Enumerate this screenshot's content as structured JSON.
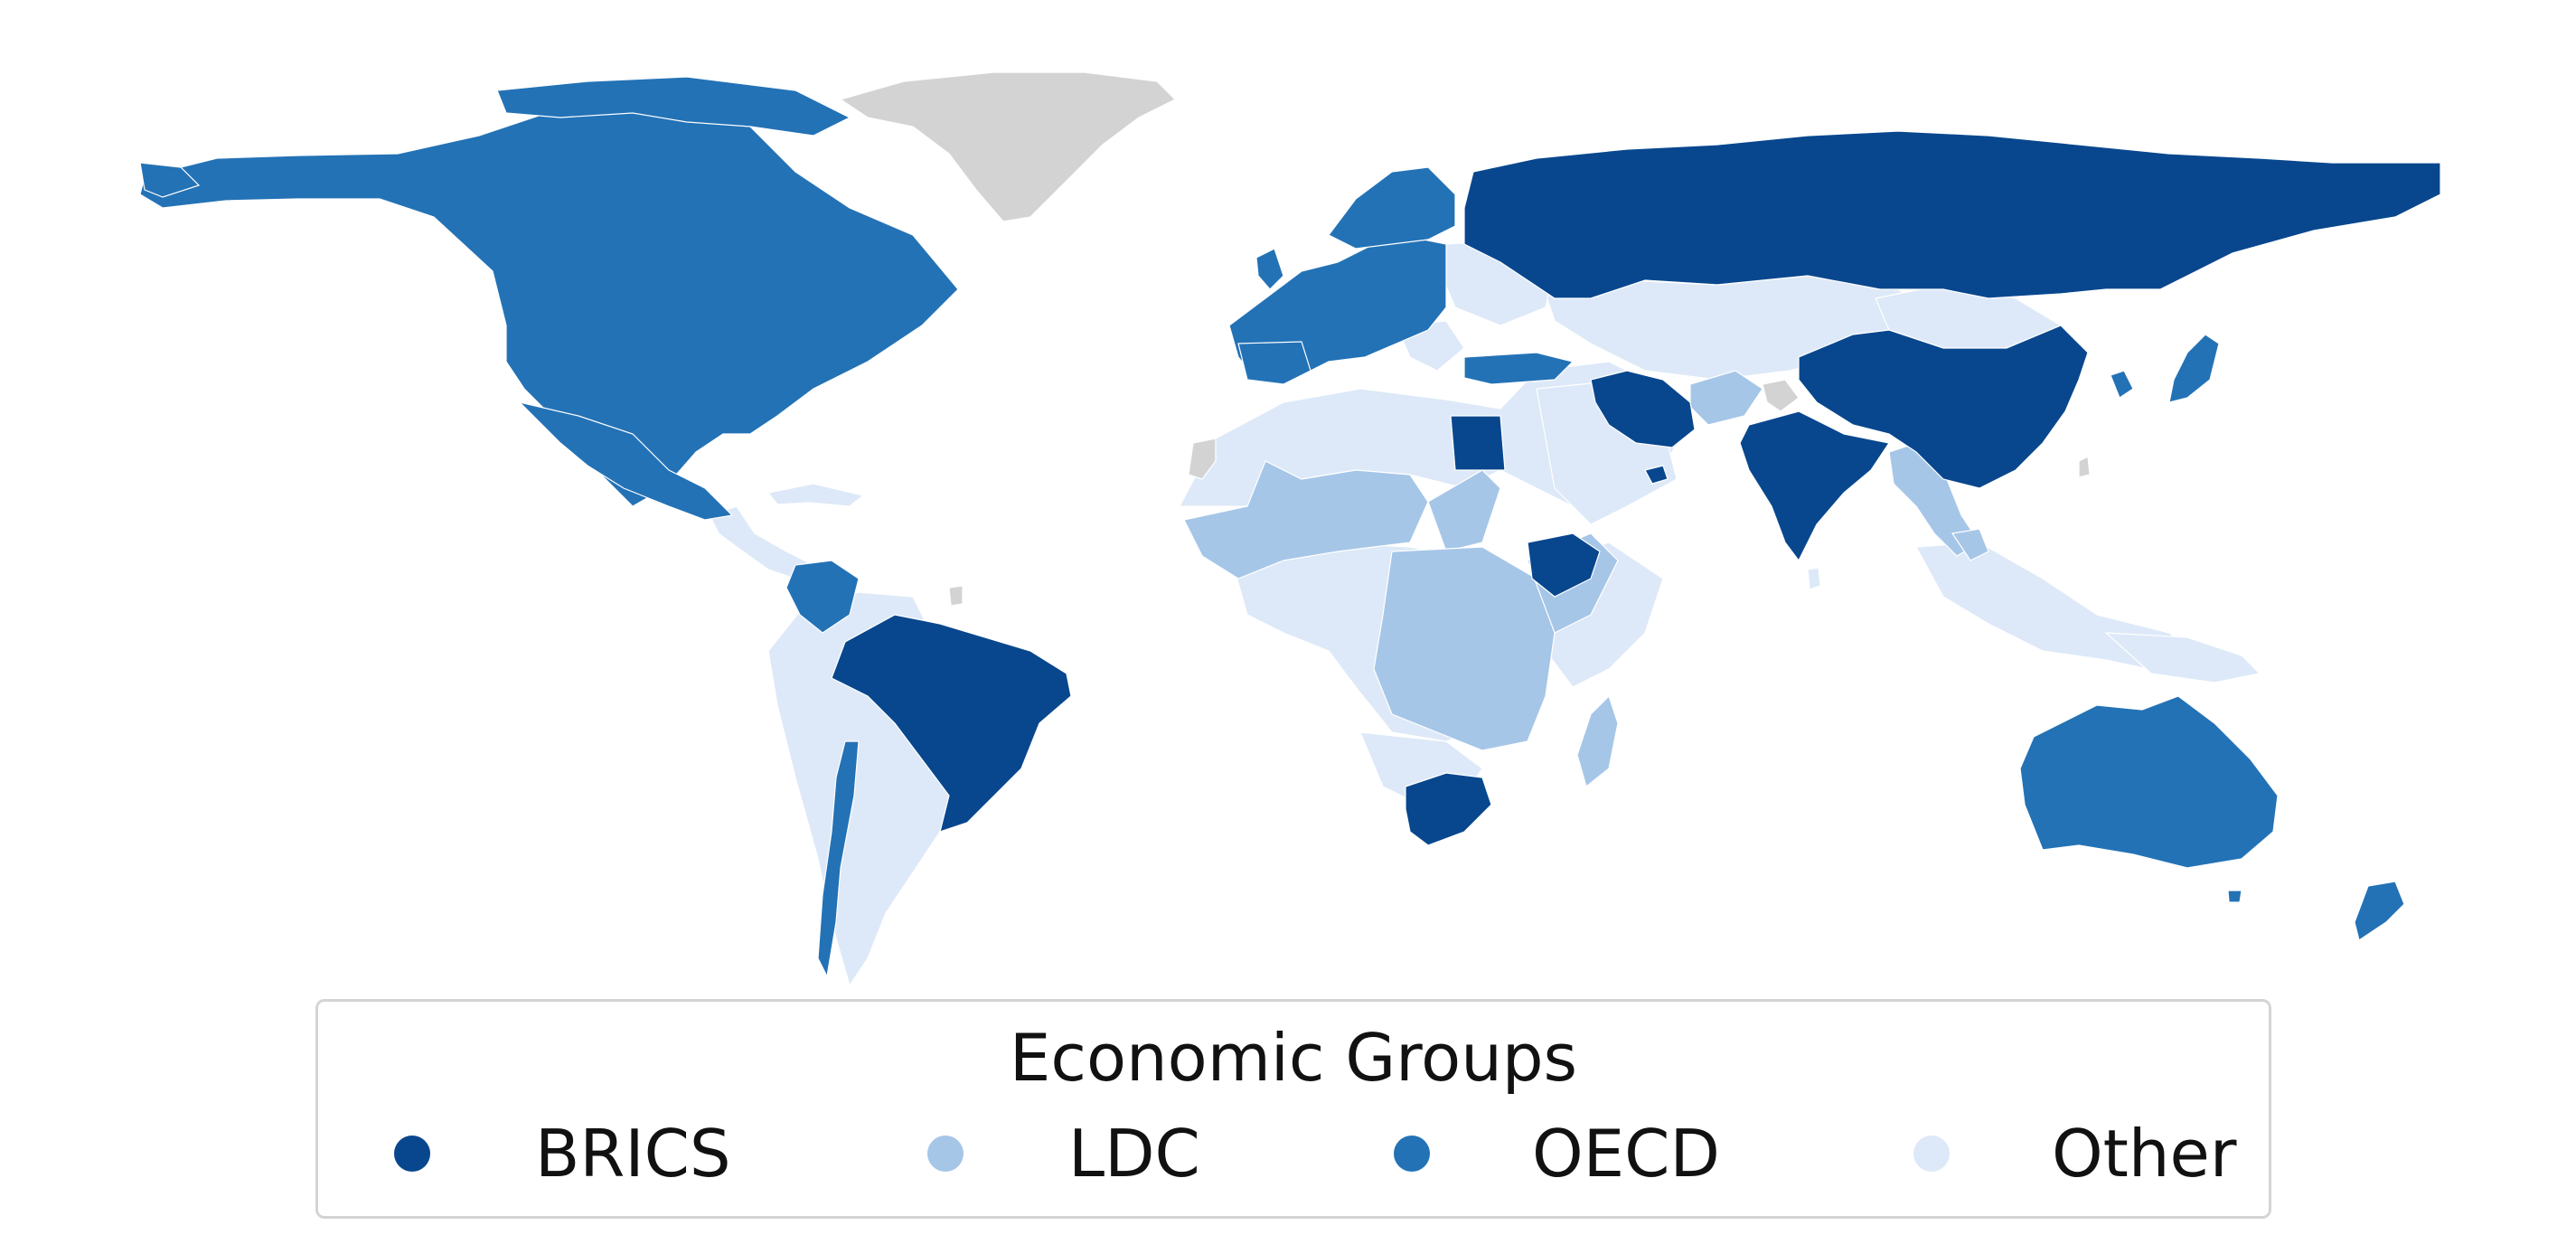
{
  "legend": {
    "title": "Economic Groups",
    "items": [
      {
        "label": "BRICS",
        "color": "#08478e"
      },
      {
        "label": "LDC",
        "color": "#a6c6e8"
      },
      {
        "label": "OECD",
        "color": "#2372b6"
      },
      {
        "label": "Other",
        "color": "#dde9f8"
      }
    ]
  },
  "no_data_color": "#d3d3d3"
}
